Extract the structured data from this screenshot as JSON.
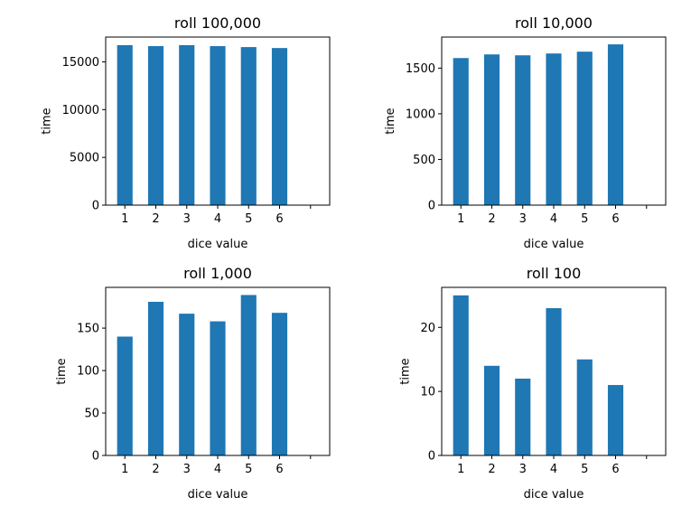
{
  "chart_data": [
    {
      "type": "bar",
      "title": "roll 100,000",
      "xlabel": "dice value",
      "ylabel": "time",
      "categories": [
        "1",
        "2",
        "3",
        "4",
        "5",
        "6"
      ],
      "values": [
        16750,
        16650,
        16750,
        16650,
        16550,
        16450
      ],
      "yticks": [
        "0",
        "5000",
        "10000",
        "15000"
      ],
      "ylim": [
        0,
        17600
      ],
      "color": "#1f77b4"
    },
    {
      "type": "bar",
      "title": "roll 10,000",
      "xlabel": "dice value",
      "ylabel": "time",
      "categories": [
        "1",
        "2",
        "3",
        "4",
        "5",
        "6"
      ],
      "values": [
        1610,
        1650,
        1640,
        1660,
        1680,
        1760
      ],
      "yticks": [
        "0",
        "500",
        "1000",
        "1500"
      ],
      "ylim": [
        0,
        1840
      ],
      "color": "#1f77b4"
    },
    {
      "type": "bar",
      "title": "roll 1,000",
      "xlabel": "dice value",
      "ylabel": "time",
      "categories": [
        "1",
        "2",
        "3",
        "4",
        "5",
        "6"
      ],
      "values": [
        140,
        181,
        167,
        158,
        189,
        168
      ],
      "yticks": [
        "0",
        "50",
        "100",
        "150"
      ],
      "ylim": [
        0,
        198
      ],
      "color": "#1f77b4"
    },
    {
      "type": "bar",
      "title": "roll 100",
      "xlabel": "dice value",
      "ylabel": "time",
      "categories": [
        "1",
        "2",
        "3",
        "4",
        "5",
        "6"
      ],
      "values": [
        25,
        14,
        12,
        23,
        15,
        11
      ],
      "yticks": [
        "0",
        "10",
        "20"
      ],
      "ylim": [
        0,
        26.25
      ],
      "color": "#1f77b4"
    }
  ]
}
